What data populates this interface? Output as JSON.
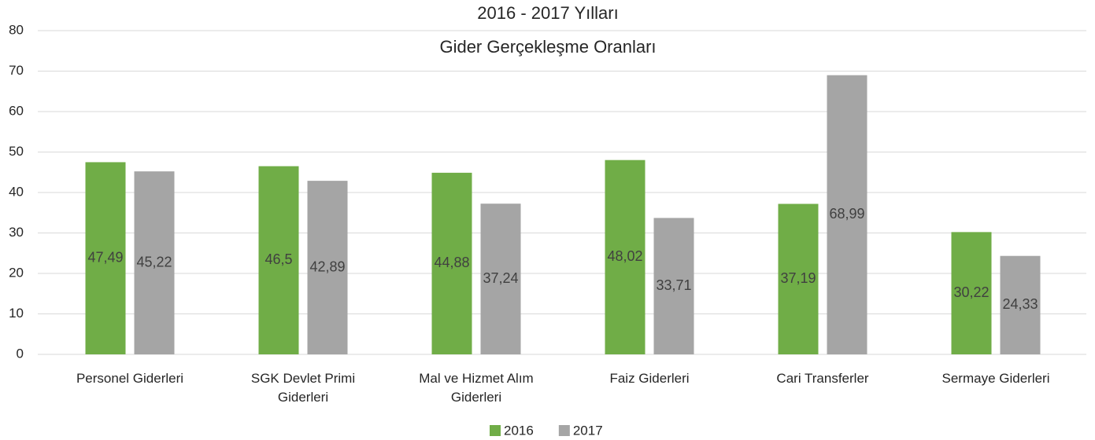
{
  "chart_data": {
    "type": "bar",
    "title": "2016 - 2017 Yılları",
    "subtitle": "Gider Gerçekleşme Oranları",
    "categories": [
      "Personel Giderleri",
      "SGK Devlet Primi Giderleri",
      "Mal ve Hizmet Alım Giderleri",
      "Faiz Giderleri",
      "Cari Transferler",
      "Sermaye Giderleri"
    ],
    "series": [
      {
        "name": "2016",
        "color": "#70ad47",
        "values": [
          47.49,
          46.5,
          44.88,
          48.02,
          37.19,
          30.22
        ],
        "value_labels": [
          "47,49",
          "46,5",
          "44,88",
          "48,02",
          "37,19",
          "30,22"
        ]
      },
      {
        "name": "2017",
        "color": "#a5a5a5",
        "values": [
          45.22,
          42.89,
          37.24,
          33.71,
          68.99,
          24.33
        ],
        "value_labels": [
          "45,22",
          "42,89",
          "37,24",
          "33,71",
          "68,99",
          "24,33"
        ]
      }
    ],
    "ylim": [
      0,
      80
    ],
    "yticks": [
      0,
      10,
      20,
      30,
      40,
      50,
      60,
      70,
      80
    ],
    "grid": true,
    "legend": "bottom"
  }
}
